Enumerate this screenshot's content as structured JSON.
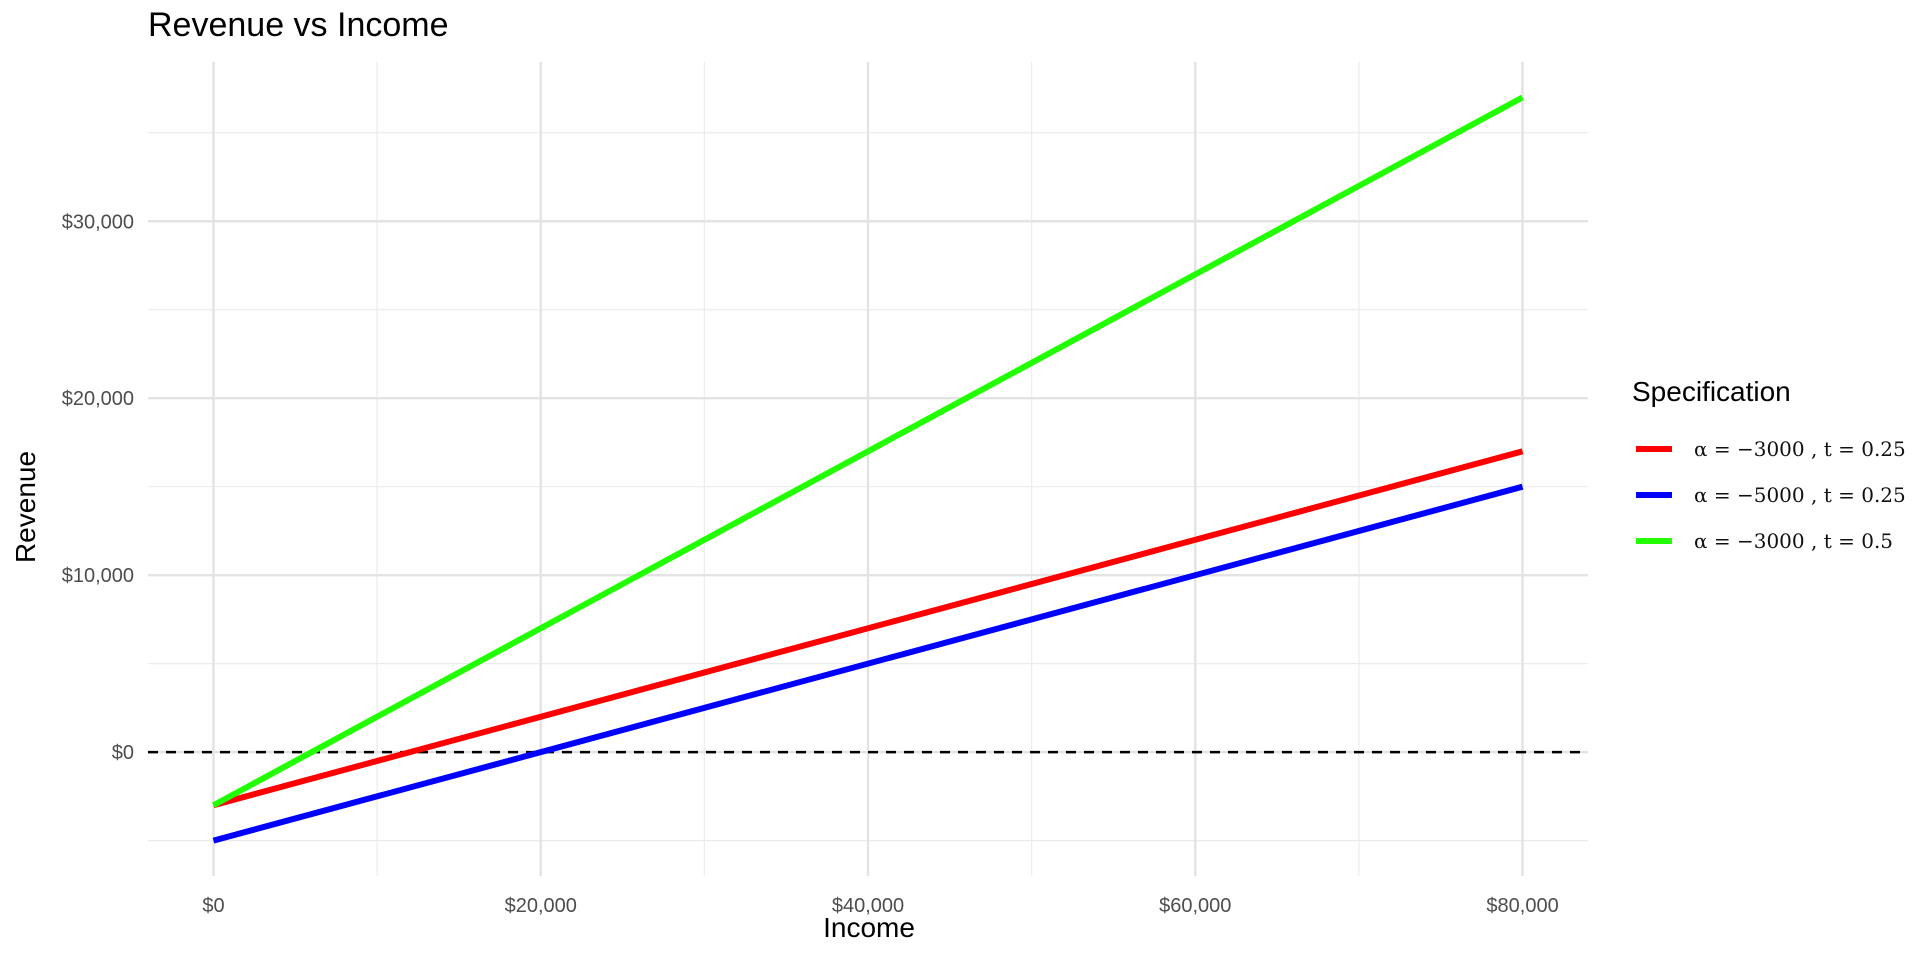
{
  "chart_data": {
    "type": "line",
    "title": "Revenue vs Income",
    "xlabel": "Income",
    "ylabel": "Revenue",
    "x": [
      0,
      80000
    ],
    "xlim": [
      -4000,
      84000
    ],
    "ylim": [
      -7000,
      39000
    ],
    "x_ticks": [
      0,
      20000,
      40000,
      60000,
      80000
    ],
    "x_tick_labels": [
      "$0",
      "$20,000",
      "$40,000",
      "$60,000",
      "$80,000"
    ],
    "x_minor_ticks": [
      10000,
      30000,
      50000,
      70000
    ],
    "y_ticks": [
      0,
      10000,
      20000,
      30000
    ],
    "y_tick_labels": [
      "$0",
      "$10,000",
      "$20,000",
      "$30,000"
    ],
    "y_minor_ticks": [
      -5000,
      5000,
      15000,
      25000,
      35000
    ],
    "grid": true,
    "reference_line": {
      "y": 0,
      "style": "dashed",
      "color": "#000000"
    },
    "legend": {
      "title": "Specification",
      "position": "right"
    },
    "series": [
      {
        "name": "α = −3000 ,  t = 0.25",
        "color": "#ff0000",
        "x": [
          0,
          80000
        ],
        "values": [
          -3000,
          17000
        ]
      },
      {
        "name": "α = −5000 ,  t = 0.25",
        "color": "#0000ff",
        "x": [
          0,
          80000
        ],
        "values": [
          -5000,
          15000
        ]
      },
      {
        "name": "α = −3000 ,  t = 0.5",
        "color": "#22ff00",
        "x": [
          0,
          80000
        ],
        "values": [
          -3000,
          37000
        ]
      }
    ]
  }
}
